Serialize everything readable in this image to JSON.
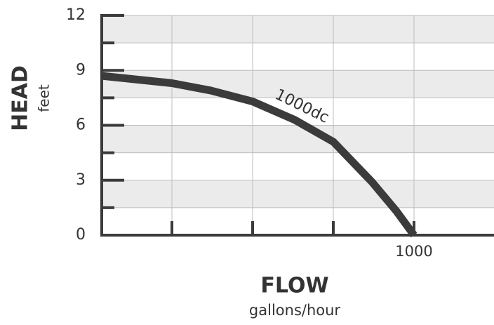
{
  "chart_data": {
    "type": "line",
    "y_label": "HEAD",
    "y_unit": "feet",
    "x_label": "FLOW",
    "x_unit": "gallons/hour",
    "x": [
      33,
      250,
      370,
      500,
      630,
      750,
      870,
      946,
      1000
    ],
    "series": [
      {
        "name": "1000dc",
        "color": "#3b3b3b",
        "values": [
          8.7,
          8.3,
          7.9,
          7.3,
          6.3,
          5.1,
          2.9,
          1.3,
          0
        ]
      }
    ],
    "xlim": [
      0,
      1250
    ],
    "xticks": [
      {
        "value": 250,
        "label": null
      },
      {
        "value": 500,
        "label": null
      },
      {
        "value": 750,
        "label": null
      },
      1000
    ],
    "ylim": [
      0,
      12
    ],
    "yticks": [
      0,
      3,
      6,
      9,
      12
    ],
    "yminor": [
      1.5,
      4.5,
      7.5,
      10.5
    ],
    "grid": true
  }
}
